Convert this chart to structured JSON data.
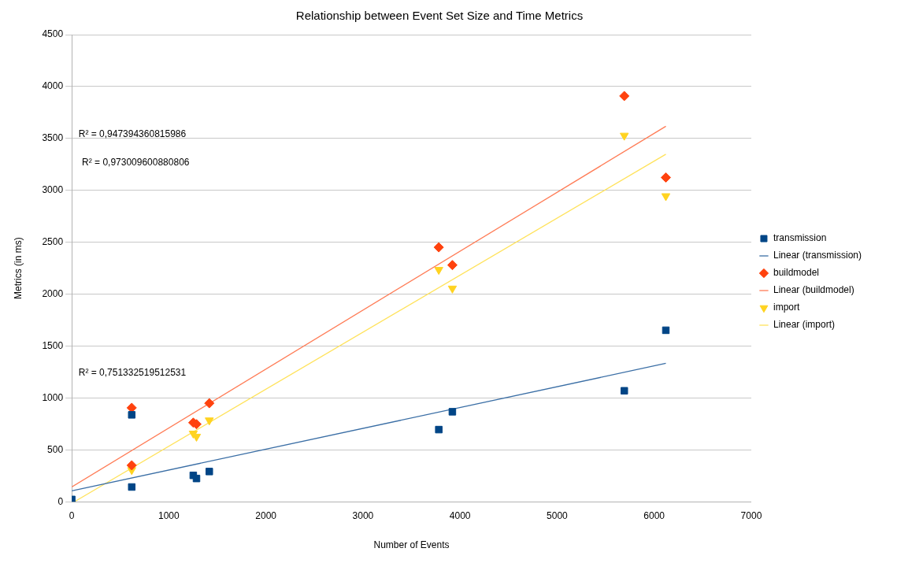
{
  "chart_data": {
    "type": "scatter",
    "title": "Relationship between Event Set Size and Time Metrics",
    "xlabel": "Number of Events",
    "ylabel": "Metrics (in ms)",
    "xlim": [
      0,
      7000
    ],
    "xticks": [
      0,
      1000,
      2000,
      3000,
      4000,
      5000,
      6000,
      7000
    ],
    "ylim": [
      0,
      4500
    ],
    "yticks": [
      0,
      500,
      1000,
      1500,
      2000,
      2500,
      3000,
      3500,
      4000,
      4500
    ],
    "grid": "y",
    "legend": "right",
    "annotations": [
      "R² = 0,947394360815986",
      "R² = 0,973009600880806",
      "R² = 0,751332519512531"
    ],
    "series": [
      {
        "type": "scatter",
        "name": "transmission",
        "color": "#004586",
        "marker": "square",
        "x": [
          0,
          618,
          618,
          1252,
          1285,
          1417,
          3781,
          3921,
          5692,
          6120
        ],
        "values": [
          22,
          837,
          142,
          254,
          224,
          291,
          695,
          867,
          1069,
          1652
        ]
      },
      {
        "type": "line",
        "name": "Linear (transmission)",
        "color": "#3a6ea5",
        "marker": "none",
        "x": [
          0,
          6120
        ],
        "values": [
          105,
          1333
        ]
      },
      {
        "type": "scatter",
        "name": "buildmodel",
        "color": "#ff420e",
        "marker": "diamond",
        "x": [
          618,
          618,
          1252,
          1285,
          1417,
          3781,
          3921,
          5692,
          6120
        ],
        "values": [
          905,
          351,
          762,
          747,
          949,
          2451,
          2280,
          3909,
          3124
        ]
      },
      {
        "type": "line",
        "name": "Linear (buildmodel)",
        "color": "#ff7b55",
        "marker": "none",
        "x": [
          0,
          6120
        ],
        "values": [
          142,
          3617
        ]
      },
      {
        "type": "scatter",
        "name": "import",
        "color": "#ffd320",
        "marker": "triangle",
        "x": [
          618,
          1252,
          1285,
          1417,
          3781,
          3921,
          5692,
          6120
        ],
        "values": [
          306,
          658,
          628,
          785,
          2235,
          2055,
          3528,
          2945
        ]
      },
      {
        "type": "line",
        "name": "Linear (import)",
        "color": "#ffe25a",
        "marker": "none",
        "x": [
          27,
          6120
        ],
        "values": [
          0,
          3348
        ]
      }
    ]
  }
}
